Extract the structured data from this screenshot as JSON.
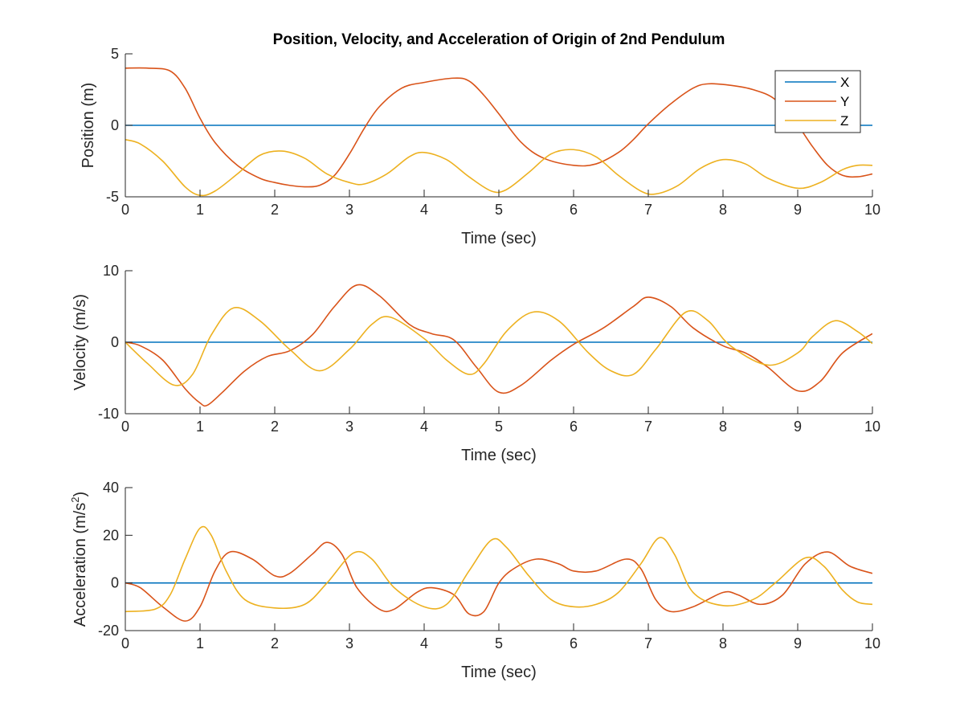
{
  "figure": {
    "title": "Position, Velocity, and Acceleration of Origin of 2nd Pendulum"
  },
  "colors": {
    "X": "#0072BD",
    "Y": "#D95319",
    "Z": "#EDB120",
    "axis": "#262626",
    "background": "#ffffff"
  },
  "chart_data": [
    {
      "type": "line",
      "title": "Position, Velocity, and Acceleration of Origin of 2nd Pendulum",
      "xlabel": "Time (sec)",
      "ylabel": "Position (m)",
      "xlim": [
        0,
        10
      ],
      "ylim": [
        -5,
        5
      ],
      "xticks": [
        0,
        1,
        2,
        3,
        4,
        5,
        6,
        7,
        8,
        9,
        10
      ],
      "yticks": [
        -5,
        0,
        5
      ],
      "grid": false,
      "legend": {
        "position": "top-right",
        "entries": [
          "X",
          "Y",
          "Z"
        ]
      },
      "series": [
        {
          "name": "X",
          "x": [
            0,
            10
          ],
          "values": [
            0,
            0
          ]
        },
        {
          "name": "Y",
          "x": [
            0,
            0.3,
            0.6,
            0.8,
            1.0,
            1.2,
            1.5,
            1.8,
            2.0,
            2.2,
            2.4,
            2.6,
            2.8,
            3.0,
            3.2,
            3.4,
            3.7,
            4.0,
            4.4,
            4.6,
            4.8,
            5.0,
            5.3,
            5.6,
            6.0,
            6.3,
            6.6,
            6.8,
            7.0,
            7.3,
            7.6,
            7.8,
            8.1,
            8.4,
            8.7,
            9.0,
            9.2,
            9.4,
            9.6,
            9.8,
            10.0
          ],
          "values": [
            4.0,
            4.0,
            3.8,
            2.6,
            0.5,
            -1.2,
            -2.8,
            -3.7,
            -4.0,
            -4.2,
            -4.3,
            -4.2,
            -3.5,
            -2.0,
            -0.2,
            1.3,
            2.6,
            3.0,
            3.3,
            3.1,
            2.1,
            0.8,
            -1.2,
            -2.3,
            -2.8,
            -2.7,
            -1.9,
            -1.0,
            0.1,
            1.5,
            2.6,
            2.9,
            2.8,
            2.5,
            1.8,
            0.0,
            -1.5,
            -2.8,
            -3.5,
            -3.6,
            -3.4
          ]
        },
        {
          "name": "Z",
          "x": [
            0,
            0.2,
            0.5,
            0.8,
            1.0,
            1.2,
            1.5,
            1.8,
            2.1,
            2.4,
            2.7,
            3.0,
            3.2,
            3.5,
            3.8,
            4.0,
            4.3,
            4.6,
            4.9,
            5.1,
            5.4,
            5.7,
            6.0,
            6.3,
            6.6,
            6.9,
            7.1,
            7.4,
            7.7,
            8.0,
            8.3,
            8.6,
            9.0,
            9.3,
            9.6,
            9.8,
            10.0
          ],
          "values": [
            -1.0,
            -1.3,
            -2.5,
            -4.3,
            -4.9,
            -4.6,
            -3.4,
            -2.1,
            -1.8,
            -2.3,
            -3.4,
            -4.0,
            -4.1,
            -3.4,
            -2.2,
            -1.9,
            -2.4,
            -3.6,
            -4.6,
            -4.5,
            -3.3,
            -2.0,
            -1.7,
            -2.2,
            -3.5,
            -4.6,
            -4.8,
            -4.2,
            -3.0,
            -2.4,
            -2.7,
            -3.7,
            -4.4,
            -4.0,
            -3.1,
            -2.8,
            -2.8
          ]
        }
      ]
    },
    {
      "type": "line",
      "xlabel": "Time (sec)",
      "ylabel": "Velocity (m/s)",
      "xlim": [
        0,
        10
      ],
      "ylim": [
        -10,
        10
      ],
      "xticks": [
        0,
        1,
        2,
        3,
        4,
        5,
        6,
        7,
        8,
        9,
        10
      ],
      "yticks": [
        -10,
        0,
        10
      ],
      "grid": false,
      "series": [
        {
          "name": "X",
          "x": [
            0,
            10
          ],
          "values": [
            0,
            0
          ]
        },
        {
          "name": "Y",
          "x": [
            0,
            0.2,
            0.5,
            0.8,
            1.0,
            1.1,
            1.3,
            1.6,
            1.9,
            2.2,
            2.5,
            2.8,
            3.1,
            3.4,
            3.8,
            4.1,
            4.4,
            4.7,
            5.0,
            5.3,
            5.7,
            6.0,
            6.4,
            6.8,
            7.0,
            7.3,
            7.6,
            8.0,
            8.3,
            8.6,
            9.0,
            9.3,
            9.6,
            10.0
          ],
          "values": [
            0,
            -0.5,
            -2.5,
            -6.5,
            -8.5,
            -8.8,
            -7.0,
            -4.0,
            -2.0,
            -1.2,
            1.0,
            5.0,
            8.0,
            6.5,
            2.5,
            1.2,
            0.3,
            -3.5,
            -7.0,
            -6.0,
            -2.5,
            -0.3,
            2.0,
            5.0,
            6.3,
            5.0,
            2.0,
            -0.5,
            -1.5,
            -3.5,
            -6.8,
            -5.5,
            -1.5,
            1.2
          ]
        },
        {
          "name": "Z",
          "x": [
            0,
            0.3,
            0.65,
            0.9,
            1.15,
            1.45,
            1.8,
            2.2,
            2.6,
            3.0,
            3.3,
            3.55,
            4.0,
            4.3,
            4.6,
            4.8,
            5.1,
            5.45,
            5.8,
            6.2,
            6.5,
            6.8,
            7.1,
            7.5,
            7.8,
            8.1,
            8.6,
            9.0,
            9.2,
            9.5,
            9.8,
            10.0
          ],
          "values": [
            0,
            -3.0,
            -6.0,
            -4.5,
            1.0,
            4.8,
            3.0,
            -1.0,
            -4.0,
            -1.0,
            2.5,
            3.5,
            0.5,
            -2.5,
            -4.5,
            -3.0,
            1.5,
            4.2,
            3.0,
            -1.5,
            -4.0,
            -4.5,
            -1.0,
            4.2,
            3.0,
            -0.5,
            -3.2,
            -1.5,
            0.8,
            3.0,
            1.5,
            -0.2
          ]
        }
      ]
    },
    {
      "type": "line",
      "xlabel": "Time (sec)",
      "ylabel_main": "Acceleration (m/s",
      "ylabel_exp": "2",
      "ylabel_close": ")",
      "xlim": [
        0,
        10
      ],
      "ylim": [
        -20,
        40
      ],
      "xticks": [
        0,
        1,
        2,
        3,
        4,
        5,
        6,
        7,
        8,
        9,
        10
      ],
      "yticks": [
        -20,
        0,
        20,
        40
      ],
      "grid": false,
      "series": [
        {
          "name": "X",
          "x": [
            0,
            10
          ],
          "values": [
            0,
            0
          ]
        },
        {
          "name": "Y",
          "x": [
            0,
            0.2,
            0.5,
            0.8,
            1.0,
            1.2,
            1.4,
            1.7,
            2.0,
            2.2,
            2.5,
            2.7,
            2.9,
            3.1,
            3.4,
            3.6,
            3.9,
            4.1,
            4.4,
            4.6,
            4.8,
            5.0,
            5.2,
            5.5,
            5.8,
            6.0,
            6.3,
            6.7,
            6.9,
            7.1,
            7.3,
            7.6,
            8.0,
            8.2,
            8.5,
            8.8,
            9.1,
            9.4,
            9.7,
            10.0
          ],
          "values": [
            0,
            -2,
            -10,
            -16,
            -10,
            5,
            13,
            10,
            3,
            4,
            12,
            17,
            12,
            -2,
            -11,
            -11,
            -4,
            -2,
            -5,
            -13,
            -12,
            0,
            6,
            10,
            8,
            5,
            5,
            10,
            6,
            -7,
            -12,
            -10,
            -4,
            -5,
            -9,
            -5,
            8,
            13,
            7,
            4
          ]
        },
        {
          "name": "Z",
          "x": [
            0,
            0.4,
            0.6,
            0.8,
            1.0,
            1.15,
            1.35,
            1.6,
            2.0,
            2.4,
            2.7,
            3.05,
            3.3,
            3.6,
            4.0,
            4.3,
            4.6,
            4.9,
            5.1,
            5.4,
            5.7,
            6.0,
            6.3,
            6.6,
            6.9,
            7.15,
            7.35,
            7.6,
            8.0,
            8.4,
            8.7,
            9.1,
            9.35,
            9.6,
            9.8,
            10.0
          ],
          "values": [
            -12,
            -11,
            -5,
            10,
            23,
            20,
            5,
            -7,
            -10.5,
            -9,
            0,
            12.5,
            10,
            -2,
            -10,
            -9,
            5,
            18,
            15,
            3,
            -7,
            -10,
            -9,
            -4,
            8,
            19,
            12,
            -4,
            -9.5,
            -7,
            0,
            10.5,
            7,
            -3,
            -8,
            -9
          ]
        }
      ]
    }
  ]
}
